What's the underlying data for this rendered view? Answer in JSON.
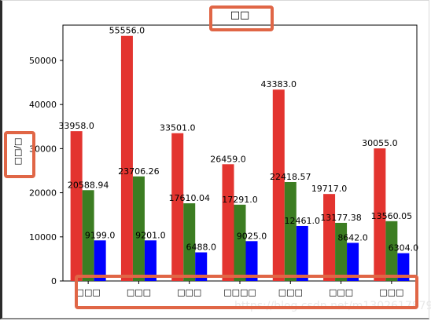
{
  "watermark": "https://blog.csdn.net/m13026178798",
  "chart_data": {
    "type": "bar",
    "title": "□□",
    "ylabel": "□□/□",
    "xlabel": "",
    "categories": [
      "□□□",
      "□□□",
      "□□□",
      "□□□□",
      "□□□",
      "□□□",
      "□□□"
    ],
    "series": [
      {
        "name": "",
        "color": "#e3342f",
        "values": [
          33958.0,
          55556.0,
          33501.0,
          26459.0,
          43383.0,
          19717.0,
          30055.0
        ],
        "labels": [
          "33958.0",
          "55556.0",
          "33501.0",
          "26459.0",
          "43383.0",
          "19717.0",
          "30055.0"
        ]
      },
      {
        "name": "",
        "color": "#3c7d22",
        "values": [
          20588.94,
          23706.26,
          17610.04,
          17291.0,
          22418.57,
          13177.38,
          13560.05
        ],
        "labels": [
          "20588.94",
          "23706.26",
          "17610.04",
          "17291.0",
          "22418.57",
          "13177.38",
          "13560.05"
        ]
      },
      {
        "name": "",
        "color": "#0000ff",
        "values": [
          9199.0,
          9201.0,
          6488.0,
          9025.0,
          12461.0,
          8642.0,
          6304.0
        ],
        "labels": [
          "9199.0",
          "9201.0",
          "6488.0",
          "9025.0",
          "12461.0",
          "8642.0",
          "6304.0"
        ]
      }
    ],
    "ylim": [
      0,
      58000
    ],
    "yticks": [
      0,
      10000,
      20000,
      30000,
      40000,
      50000
    ],
    "ytick_labels": [
      "0",
      "10000",
      "20000",
      "30000",
      "40000",
      "50000"
    ],
    "grid": false,
    "legend": "none",
    "highlight_color": "#e06646"
  }
}
